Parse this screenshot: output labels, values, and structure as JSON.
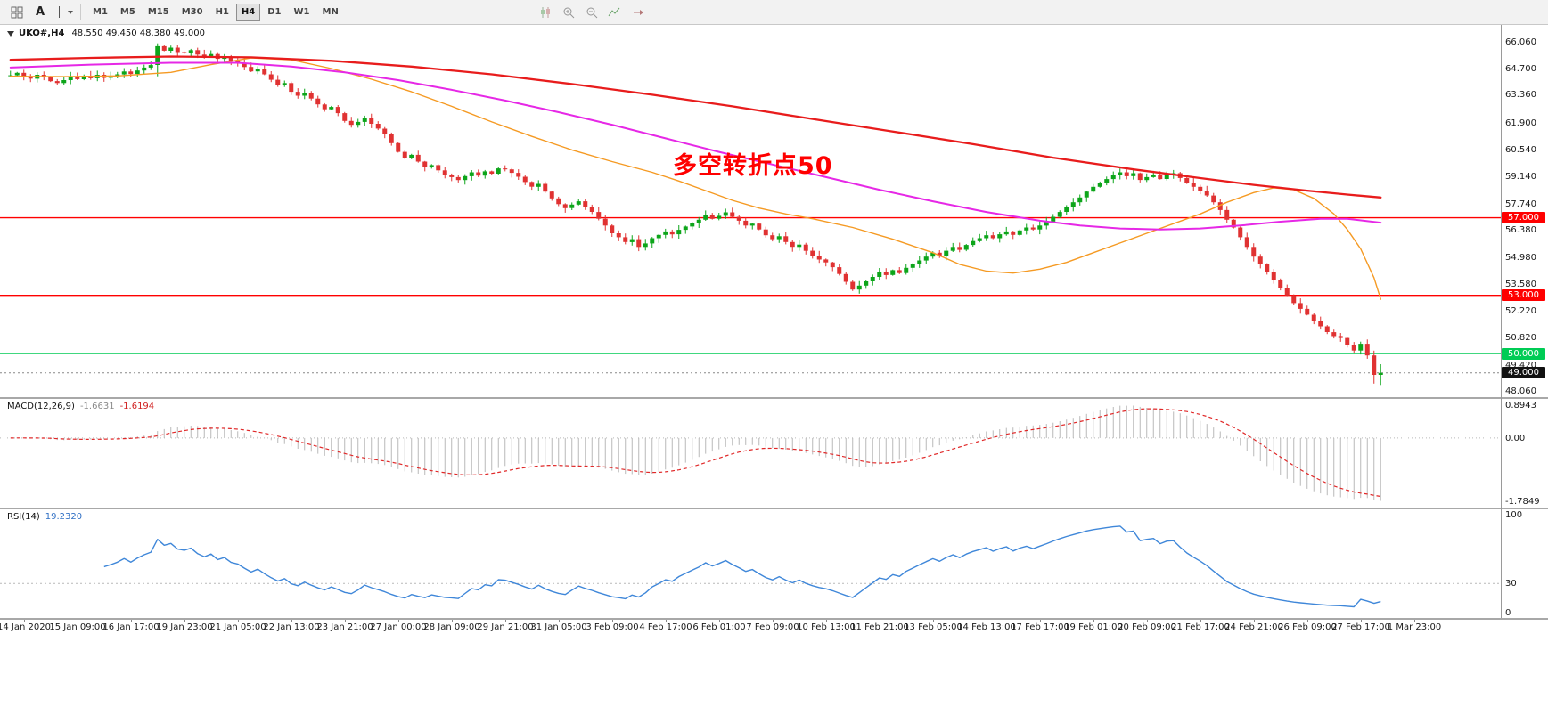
{
  "toolbar": {
    "letter_button": "A",
    "timeframes": [
      "M1",
      "M5",
      "M15",
      "M30",
      "H1",
      "H4",
      "D1",
      "W1",
      "MN"
    ],
    "active_timeframe": "H4"
  },
  "chart": {
    "title": "UKO#,H4",
    "ohlc": "48.550 49.450 48.380 49.000",
    "annotation": "多空转折点50",
    "price_ticks": [
      "66.060",
      "64.700",
      "63.360",
      "61.900",
      "60.540",
      "59.140",
      "57.740",
      "56.380",
      "54.980",
      "53.580",
      "52.220",
      "50.820",
      "49.420",
      "48.060"
    ],
    "hlines": [
      {
        "price": 57.0,
        "label": "57.000",
        "color": "#ff0000"
      },
      {
        "price": 53.0,
        "label": "53.000",
        "color": "#ff0000"
      },
      {
        "price": 50.0,
        "label": "50.000",
        "color": "#00cc55"
      }
    ],
    "current_price": {
      "price": 49.0,
      "label": "49.000",
      "badge_color": "#111111"
    }
  },
  "macd": {
    "header": "MACD(12,26,9)",
    "value1": "-1.6631",
    "value2": "-1.6194",
    "ticks": [
      "0.8943",
      "0.00",
      "-1.7849"
    ]
  },
  "rsi": {
    "header": "RSI(14)",
    "value": "19.2320",
    "ticks": [
      "100",
      "30",
      "0"
    ],
    "level": 30
  },
  "time_axis": [
    "14 Jan 2020",
    "15 Jan 09:00",
    "16 Jan 17:00",
    "19 Jan 23:00",
    "21 Jan 05:00",
    "22 Jan 13:00",
    "23 Jan 21:00",
    "27 Jan 00:00",
    "28 Jan 09:00",
    "29 Jan 21:00",
    "31 Jan 05:00",
    "3 Feb 09:00",
    "4 Feb 17:00",
    "6 Feb 01:00",
    "7 Feb 09:00",
    "10 Feb 13:00",
    "11 Feb 21:00",
    "13 Feb 05:00",
    "14 Feb 13:00",
    "17 Feb 17:00",
    "19 Feb 01:00",
    "20 Feb 09:00",
    "21 Feb 17:00",
    "24 Feb 21:00",
    "26 Feb 09:00",
    "27 Feb 17:00",
    "1 Mar 23:00"
  ],
  "colors": {
    "candle_up": "#0da51a",
    "candle_down": "#e03232",
    "ma_red": "#e81c1c",
    "ma_magenta": "#e628e6",
    "ma_orange": "#f59a23",
    "macd_hist": "#b8b8b8",
    "macd_signal": "#e02828",
    "rsi_line": "#3f87d9"
  },
  "chart_data": {
    "type": "candlestick+indicators",
    "symbol": "UKO#",
    "timeframe": "H4",
    "price_range": [
      47.75,
      66.95
    ],
    "first_label_bar": 2,
    "label_step_bars": 8,
    "macd_params": [
      12,
      26,
      9
    ],
    "rsi_period": 14,
    "closes": [
      64.35,
      64.48,
      64.3,
      64.18,
      64.38,
      64.25,
      64.05,
      63.95,
      64.1,
      64.28,
      64.15,
      64.32,
      64.2,
      64.38,
      64.22,
      64.3,
      64.4,
      64.55,
      64.42,
      64.6,
      64.75,
      64.88,
      65.85,
      65.62,
      65.78,
      65.55,
      65.5,
      65.65,
      65.42,
      65.28,
      65.45,
      65.2,
      65.32,
      65.08,
      65.0,
      64.78,
      64.55,
      64.68,
      64.4,
      64.12,
      63.85,
      63.95,
      63.5,
      63.3,
      63.45,
      63.15,
      62.85,
      62.6,
      62.72,
      62.4,
      62.0,
      61.8,
      61.95,
      62.15,
      61.85,
      61.6,
      61.3,
      60.85,
      60.4,
      60.1,
      60.25,
      59.9,
      59.6,
      59.72,
      59.45,
      59.2,
      59.1,
      58.95,
      59.15,
      59.35,
      59.18,
      59.4,
      59.28,
      59.55,
      59.5,
      59.32,
      59.12,
      58.85,
      58.6,
      58.75,
      58.35,
      58.0,
      57.7,
      57.5,
      57.68,
      57.85,
      57.55,
      57.3,
      56.95,
      56.6,
      56.2,
      56.0,
      55.75,
      55.9,
      55.5,
      55.68,
      55.95,
      56.12,
      56.3,
      56.15,
      56.38,
      56.55,
      56.72,
      56.9,
      57.15,
      56.95,
      57.1,
      57.28,
      57.05,
      56.85,
      56.6,
      56.7,
      56.4,
      56.1,
      55.9,
      56.05,
      55.75,
      55.5,
      55.62,
      55.3,
      55.05,
      54.85,
      54.7,
      54.45,
      54.1,
      53.7,
      53.3,
      53.5,
      53.72,
      53.95,
      54.2,
      54.05,
      54.3,
      54.15,
      54.42,
      54.6,
      54.8,
      55.0,
      55.2,
      55.05,
      55.3,
      55.5,
      55.35,
      55.6,
      55.8,
      55.95,
      56.1,
      55.95,
      56.15,
      56.3,
      56.12,
      56.35,
      56.5,
      56.4,
      56.6,
      56.8,
      57.05,
      57.3,
      57.55,
      57.8,
      58.05,
      58.35,
      58.6,
      58.8,
      59.0,
      59.2,
      59.35,
      59.15,
      59.3,
      58.95,
      59.1,
      59.2,
      59.0,
      59.25,
      59.3,
      59.05,
      58.8,
      58.6,
      58.4,
      58.15,
      57.8,
      57.4,
      56.9,
      56.5,
      56.0,
      55.5,
      55.0,
      54.6,
      54.2,
      53.8,
      53.4,
      53.0,
      52.6,
      52.3,
      52.0,
      51.7,
      51.4,
      51.1,
      50.9,
      50.8,
      50.45,
      50.15,
      50.5,
      49.9,
      48.9,
      49.0
    ],
    "wick_overrides": {
      "22": [
        66.0,
        64.3
      ],
      "204": [
        50.15,
        48.45
      ],
      "205": [
        49.45,
        48.38
      ]
    },
    "ma_red": [
      [
        0,
        65.15
      ],
      [
        12,
        65.25
      ],
      [
        24,
        65.32
      ],
      [
        36,
        65.28
      ],
      [
        48,
        65.1
      ],
      [
        60,
        64.8
      ],
      [
        72,
        64.4
      ],
      [
        84,
        63.9
      ],
      [
        96,
        63.35
      ],
      [
        108,
        62.75
      ],
      [
        120,
        62.1
      ],
      [
        132,
        61.45
      ],
      [
        144,
        60.8
      ],
      [
        156,
        60.1
      ],
      [
        168,
        59.5
      ],
      [
        178,
        59.05
      ],
      [
        186,
        58.7
      ],
      [
        194,
        58.4
      ],
      [
        200,
        58.2
      ],
      [
        205,
        58.05
      ]
    ],
    "ma_magenta": [
      [
        0,
        64.75
      ],
      [
        12,
        64.9
      ],
      [
        24,
        65.0
      ],
      [
        34,
        65.0
      ],
      [
        42,
        64.8
      ],
      [
        50,
        64.5
      ],
      [
        58,
        64.1
      ],
      [
        66,
        63.6
      ],
      [
        74,
        63.05
      ],
      [
        82,
        62.45
      ],
      [
        90,
        61.8
      ],
      [
        98,
        61.1
      ],
      [
        106,
        60.4
      ],
      [
        114,
        59.75
      ],
      [
        122,
        59.1
      ],
      [
        130,
        58.45
      ],
      [
        138,
        57.85
      ],
      [
        146,
        57.3
      ],
      [
        154,
        56.85
      ],
      [
        160,
        56.6
      ],
      [
        166,
        56.45
      ],
      [
        172,
        56.4
      ],
      [
        178,
        56.45
      ],
      [
        184,
        56.6
      ],
      [
        190,
        56.8
      ],
      [
        196,
        56.95
      ],
      [
        200,
        56.95
      ],
      [
        205,
        56.75
      ]
    ],
    "ma_orange": [
      [
        0,
        64.3
      ],
      [
        8,
        64.28
      ],
      [
        16,
        64.32
      ],
      [
        24,
        64.5
      ],
      [
        30,
        64.9
      ],
      [
        36,
        65.25
      ],
      [
        42,
        65.15
      ],
      [
        48,
        64.7
      ],
      [
        54,
        64.15
      ],
      [
        60,
        63.5
      ],
      [
        66,
        62.75
      ],
      [
        72,
        61.95
      ],
      [
        78,
        61.2
      ],
      [
        84,
        60.5
      ],
      [
        90,
        59.9
      ],
      [
        96,
        59.35
      ],
      [
        100,
        58.9
      ],
      [
        104,
        58.4
      ],
      [
        108,
        57.9
      ],
      [
        112,
        57.5
      ],
      [
        116,
        57.2
      ],
      [
        120,
        56.95
      ],
      [
        126,
        56.5
      ],
      [
        132,
        55.9
      ],
      [
        138,
        55.2
      ],
      [
        142,
        54.6
      ],
      [
        146,
        54.25
      ],
      [
        150,
        54.15
      ],
      [
        154,
        54.35
      ],
      [
        158,
        54.7
      ],
      [
        162,
        55.2
      ],
      [
        166,
        55.7
      ],
      [
        170,
        56.2
      ],
      [
        174,
        56.7
      ],
      [
        178,
        57.2
      ],
      [
        182,
        57.8
      ],
      [
        186,
        58.3
      ],
      [
        189,
        58.55
      ],
      [
        192,
        58.45
      ],
      [
        195,
        58.0
      ],
      [
        198,
        57.2
      ],
      [
        200,
        56.4
      ],
      [
        202,
        55.4
      ],
      [
        204,
        53.9
      ],
      [
        205,
        52.8
      ]
    ]
  }
}
